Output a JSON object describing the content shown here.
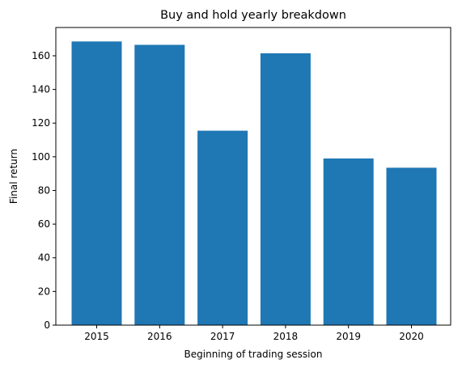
{
  "chart_data": {
    "type": "bar",
    "title": "Buy and hold yearly breakdown",
    "xlabel": "Beginning of trading session",
    "ylabel": "Final return",
    "categories": [
      "2015",
      "2016",
      "2017",
      "2018",
      "2019",
      "2020"
    ],
    "values": [
      168.5,
      166.5,
      115.5,
      161.5,
      99.0,
      93.5
    ],
    "ylim": [
      0,
      176.8
    ],
    "yticks": [
      0,
      20,
      40,
      60,
      80,
      100,
      120,
      140,
      160
    ],
    "bar_color": "#1f77b4",
    "grid": false,
    "legend": "none"
  }
}
